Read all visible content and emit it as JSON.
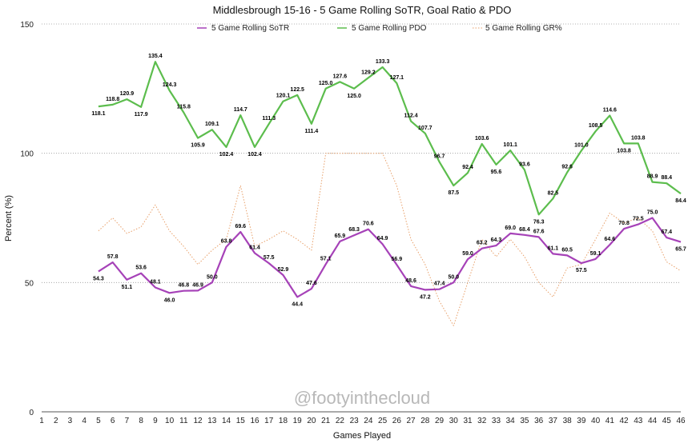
{
  "chart_data": {
    "type": "line",
    "title": "Middlesbrough 15-16 - 5 Game Rolling SoTR, Goal Ratio & PDO",
    "xlabel": "Games Played",
    "ylabel": "Percent (%)",
    "xlim": [
      1,
      46
    ],
    "ylim": [
      0,
      150
    ],
    "yticks": [
      0,
      50,
      100,
      150
    ],
    "grid": "horizontal dotted",
    "legend_position": "top",
    "watermark": "@footyinthecloud",
    "x": [
      5,
      6,
      7,
      8,
      9,
      10,
      11,
      12,
      13,
      14,
      15,
      16,
      17,
      18,
      19,
      20,
      21,
      22,
      23,
      24,
      25,
      26,
      27,
      28,
      29,
      30,
      31,
      32,
      33,
      34,
      35,
      36,
      37,
      38,
      39,
      40,
      41,
      42,
      43,
      44,
      45,
      46
    ],
    "series": [
      {
        "name": "5 Game Rolling SoTR",
        "color": "#a642b8",
        "style": "solid",
        "labeled": true,
        "values": [
          54.3,
          57.8,
          51.1,
          53.6,
          48.1,
          46.0,
          46.8,
          46.9,
          50.0,
          63.8,
          69.6,
          61.4,
          57.5,
          52.9,
          44.4,
          47.6,
          57.1,
          65.9,
          68.3,
          70.6,
          64.9,
          56.9,
          48.6,
          47.2,
          47.4,
          50.0,
          59.0,
          63.2,
          64.3,
          69.0,
          68.4,
          67.6,
          61.1,
          60.5,
          57.5,
          59.1,
          64.6,
          70.8,
          72.5,
          75.0,
          67.4,
          65.7
        ],
        "labels": [
          "54.3",
          "57.8",
          "51.1",
          "53.6",
          "48.1",
          "46.0",
          "46.8",
          "46.9",
          "50.0",
          "63.8",
          "69.6",
          "61.4",
          "57.5",
          "52.9",
          "44.4",
          "47.6",
          "57.1",
          "65.9",
          "68.3",
          "70.6",
          "64.9",
          "56.9",
          "48.6",
          "47.2",
          "47.4",
          "50.0",
          "59.0",
          "63.2",
          "64.3",
          "69.0",
          "68.4",
          "67.6",
          "61.1",
          "60.5",
          "57.5",
          "59.1",
          "64.6",
          "70.8",
          "72.5",
          "75.0",
          "67.4",
          "65.7"
        ]
      },
      {
        "name": "5 Game Rolling PDO",
        "color": "#5cbd4d",
        "style": "solid",
        "labeled": true,
        "values": [
          118.1,
          118.8,
          120.9,
          117.9,
          135.4,
          124.3,
          115.8,
          105.9,
          109.1,
          102.4,
          114.7,
          102.4,
          111.3,
          120.1,
          122.5,
          111.4,
          125.0,
          127.6,
          125.0,
          129.2,
          133.3,
          127.1,
          112.4,
          107.7,
          96.7,
          87.5,
          92.4,
          103.6,
          95.6,
          101.1,
          93.6,
          76.3,
          82.5,
          92.6,
          101.0,
          108.5,
          114.6,
          103.8,
          103.8,
          88.9,
          88.4,
          84.4
        ],
        "labels": [
          "118.1",
          "118.8",
          "120.9",
          "117.9",
          "135.4",
          "124.3",
          "115.8",
          "105.9",
          "109.1",
          "102.4",
          "114.7",
          "102.4",
          "111.3",
          "120.1",
          "122.5",
          "111.4",
          "125.0",
          "127.6",
          "125.0",
          "129.2",
          "133.3",
          "127.1",
          "112.4",
          "107.7",
          "96.7",
          "87.5",
          "92.4",
          "103.6",
          "95.6",
          "101.1",
          "93.6",
          "76.3",
          "82.5",
          "92.6",
          "101.0",
          "108.5",
          "114.6",
          "103.8",
          "103.8",
          "88.9",
          "88.4",
          "84.4"
        ]
      },
      {
        "name": "5 Game Rolling GR%",
        "color": "#e8a06a",
        "style": "dotted",
        "labeled": false,
        "values": [
          70,
          75,
          69,
          71.5,
          80,
          70,
          64,
          57,
          62.5,
          66.7,
          87.5,
          64,
          66.7,
          70,
          66.7,
          62.5,
          100,
          100,
          100,
          100,
          100,
          87.5,
          66.7,
          57,
          42.9,
          33.3,
          50,
          66.7,
          60,
          66.7,
          60,
          50,
          44.4,
          55.6,
          57,
          66.7,
          76.9,
          73,
          75,
          70,
          58,
          54.5
        ]
      }
    ]
  }
}
